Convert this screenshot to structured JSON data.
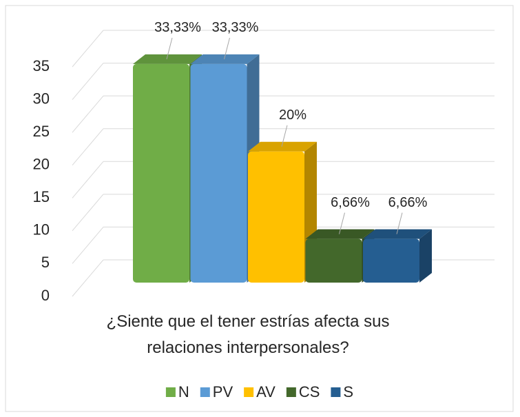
{
  "chart_data": {
    "type": "bar",
    "categories": [
      "¿Siente que el tener estrías afecta sus relaciones interpersonales?"
    ],
    "series": [
      {
        "name": "N",
        "color": "#70ad47",
        "values": [
          33.33
        ],
        "value_labels": [
          "33,33%"
        ]
      },
      {
        "name": "PV",
        "color": "#5b9bd5",
        "values": [
          33.33
        ],
        "value_labels": [
          "33,33%"
        ]
      },
      {
        "name": "AV",
        "color": "#ffc000",
        "values": [
          20
        ],
        "value_labels": [
          "20%"
        ]
      },
      {
        "name": "CS",
        "color": "#43682b",
        "values": [
          6.66
        ],
        "value_labels": [
          "6,66%"
        ]
      },
      {
        "name": "S",
        "color": "#255e91",
        "values": [
          6.66
        ],
        "value_labels": [
          "6,66%"
        ]
      }
    ],
    "ylim": [
      0,
      35
    ],
    "yticks": [
      0,
      5,
      10,
      15,
      20,
      25,
      30,
      35
    ],
    "grid": true,
    "legend": "bottom"
  }
}
